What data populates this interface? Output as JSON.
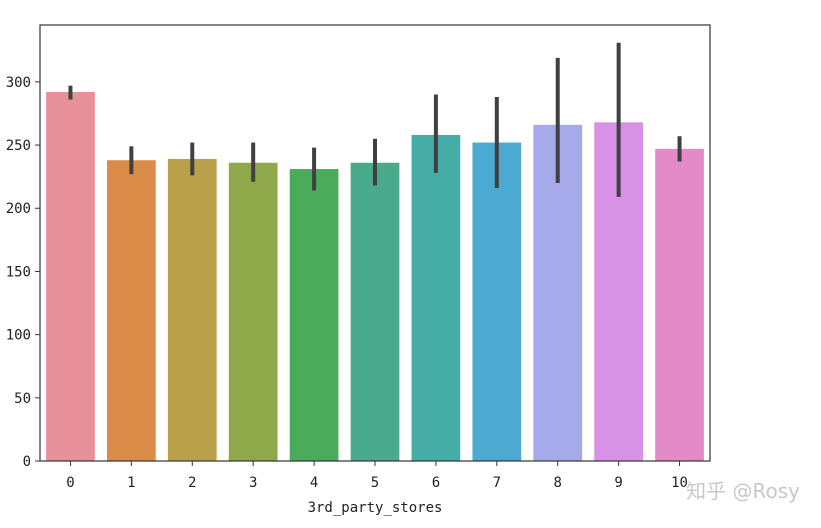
{
  "watermark": "知乎 @Rosy",
  "chart_data": {
    "type": "bar",
    "title": "",
    "xlabel": "3rd_party_stores",
    "ylabel": "",
    "categories": [
      "0",
      "1",
      "2",
      "3",
      "4",
      "5",
      "6",
      "7",
      "8",
      "9",
      "10"
    ],
    "values": [
      292,
      238,
      239,
      236,
      231,
      236,
      258,
      252,
      266,
      268,
      247
    ],
    "error_bars": [
      [
        286,
        297
      ],
      [
        227,
        249
      ],
      [
        226,
        252
      ],
      [
        221,
        252
      ],
      [
        214,
        248
      ],
      [
        218,
        255
      ],
      [
        228,
        290
      ],
      [
        216,
        288
      ],
      [
        220,
        319
      ],
      [
        209,
        331
      ],
      [
        237,
        257
      ]
    ],
    "colors": [
      "#e8919b",
      "#db8c48",
      "#b9a04a",
      "#8fa84a",
      "#4bab5c",
      "#49ab8c",
      "#45aca6",
      "#4ba9d2",
      "#a7aaea",
      "#d791e5",
      "#e38ac9"
    ],
    "error_color": "#404040",
    "ylim": [
      0,
      345
    ],
    "yticks": [
      0,
      50,
      100,
      150,
      200,
      250,
      300
    ],
    "grid": false,
    "legend": "none"
  }
}
